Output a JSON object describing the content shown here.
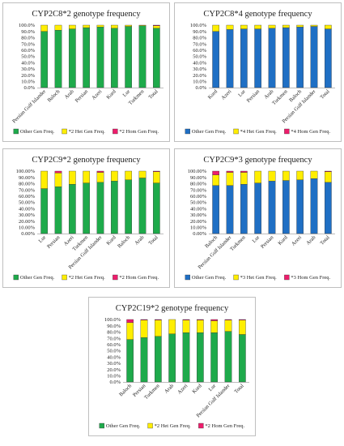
{
  "colors": {
    "green": "#1eaa4b",
    "blue": "#1f6fc4",
    "yellow": "#ffee00",
    "pink": "#ee1d6c"
  },
  "chart_data": [
    {
      "type": "bar",
      "stacked": true,
      "title": "CYP2C8*2 genotype frequency",
      "categories": [
        "Persian Gulf Islander",
        "Baloch",
        "Arab",
        "Persian",
        "Azeri",
        "Kurd",
        "Lur",
        "Turkmen",
        "Total"
      ],
      "series": [
        {
          "name": "Other Gen Freq.",
          "color": "green",
          "values": [
            90,
            92,
            94,
            96,
            97,
            95,
            98,
            99,
            95
          ]
        },
        {
          "name": "*2 Het Gen Freq.",
          "color": "yellow",
          "values": [
            10,
            8,
            6,
            4,
            3,
            5,
            2,
            1,
            4
          ]
        },
        {
          "name": "*2 Hom Gen Freq.",
          "color": "pink",
          "values": [
            0,
            0,
            0,
            0,
            0,
            0,
            0,
            0,
            1
          ]
        }
      ],
      "ylim": [
        0,
        100
      ],
      "yticks": [
        "0.0%",
        "10.0%",
        "20.0%",
        "30.0%",
        "40.0%",
        "50.0%",
        "60.0%",
        "70.0%",
        "80.0%",
        "90.0%",
        "100.0%"
      ],
      "legend": "bottom"
    },
    {
      "type": "bar",
      "stacked": true,
      "title": "CYP2C8*4 genotype frequency",
      "categories": [
        "Kurd",
        "Azeri",
        "Lur",
        "Persian",
        "Arab",
        "Turkmen",
        "Baloch",
        "Persian Gulf Islander",
        "Total"
      ],
      "series": [
        {
          "name": "Other Gen Freq.",
          "color": "blue",
          "values": [
            90,
            93,
            94,
            94,
            95,
            96,
            97,
            98,
            94
          ]
        },
        {
          "name": "*4 Het Gen Freq.",
          "color": "yellow",
          "values": [
            10,
            7,
            6,
            6,
            5,
            4,
            3,
            2,
            6
          ]
        },
        {
          "name": "*4 Hom Gen Freq.",
          "color": "pink",
          "values": [
            0,
            0,
            0,
            0,
            0,
            0,
            0,
            0,
            0
          ]
        }
      ],
      "ylim": [
        0,
        100
      ],
      "yticks": [
        "0.0%",
        "10.0%",
        "20.0%",
        "30.0%",
        "40.0%",
        "50.0%",
        "60.0%",
        "70.0%",
        "80.0%",
        "90.0%",
        "100.0%"
      ],
      "legend": "bottom"
    },
    {
      "type": "bar",
      "stacked": true,
      "title": "CYP2C9*2 genotype frequency",
      "categories": [
        "Lur",
        "Persian",
        "Azeri",
        "Turkmen",
        "Persian Gulf Islander",
        "Kurd",
        "Baloch",
        "Arab",
        "Total"
      ],
      "series": [
        {
          "name": "Other Gen Freq.",
          "color": "green",
          "values": [
            72,
            75,
            79,
            81,
            82,
            84,
            86,
            89,
            81
          ]
        },
        {
          "name": "*2 Het Gen Freq.",
          "color": "yellow",
          "values": [
            28,
            22,
            21,
            19,
            16,
            16,
            14,
            11,
            18
          ]
        },
        {
          "name": "*2 Hom Gen Freq.",
          "color": "pink",
          "values": [
            0,
            3,
            0,
            0,
            2,
            0,
            0,
            0,
            1
          ]
        }
      ],
      "ylim": [
        0,
        100
      ],
      "yticks": [
        "0.00%",
        "10.00%",
        "20.00%",
        "30.00%",
        "40.00%",
        "50.00%",
        "60.00%",
        "70.00%",
        "80.00%",
        "90.00%",
        "100.00%"
      ],
      "legend": "bottom"
    },
    {
      "type": "bar",
      "stacked": true,
      "title": "CYP2C9*3 genotype frequency",
      "categories": [
        "Baloch",
        "Persian Gulf Islander",
        "Turkmen",
        "Lur",
        "Persian",
        "Kurd",
        "Azeri",
        "Arab",
        "Total"
      ],
      "series": [
        {
          "name": "Other Gen Freq.",
          "color": "blue",
          "values": [
            77,
            77,
            79,
            81,
            84,
            85,
            86,
            88,
            82
          ]
        },
        {
          "name": "*3 Het Gen Freq.",
          "color": "yellow",
          "values": [
            17,
            21,
            19,
            19,
            16,
            15,
            14,
            12,
            17
          ]
        },
        {
          "name": "*3 Hom Gen Freq.",
          "color": "pink",
          "values": [
            6,
            2,
            2,
            0,
            0,
            0,
            0,
            0,
            1
          ]
        }
      ],
      "ylim": [
        0,
        100
      ],
      "yticks": [
        "0.00%",
        "10.00%",
        "20.00%",
        "30.00%",
        "40.00%",
        "50.00%",
        "60.00%",
        "70.00%",
        "80.00%",
        "90.00%",
        "100.00%"
      ],
      "legend": "bottom"
    },
    {
      "type": "bar",
      "stacked": true,
      "title": "CYP2C19*2 genotype frequency",
      "categories": [
        "Baloch",
        "Persian",
        "Turkmen",
        "Arab",
        "Azeri",
        "Kurd",
        "Lur",
        "Persian Gulf Islander",
        "Total"
      ],
      "series": [
        {
          "name": "Other Gen Freq.",
          "color": "green",
          "values": [
            68,
            71,
            73,
            77,
            79,
            79,
            79,
            81,
            76
          ]
        },
        {
          "name": "*2 Het Gen Freq.",
          "color": "yellow",
          "values": [
            27,
            28,
            26,
            23,
            20,
            20,
            19,
            18,
            23
          ]
        },
        {
          "name": "*2 Hom Gen Freq.",
          "color": "pink",
          "values": [
            5,
            1,
            1,
            0,
            1,
            1,
            2,
            1,
            1
          ]
        }
      ],
      "ylim": [
        0,
        100
      ],
      "yticks": [
        "0.0%",
        "10.0%",
        "20.0%",
        "30.0%",
        "40.0%",
        "50.0%",
        "60.0%",
        "70.0%",
        "80.0%",
        "90.0%",
        "100.0%"
      ],
      "legend": "bottom"
    }
  ]
}
